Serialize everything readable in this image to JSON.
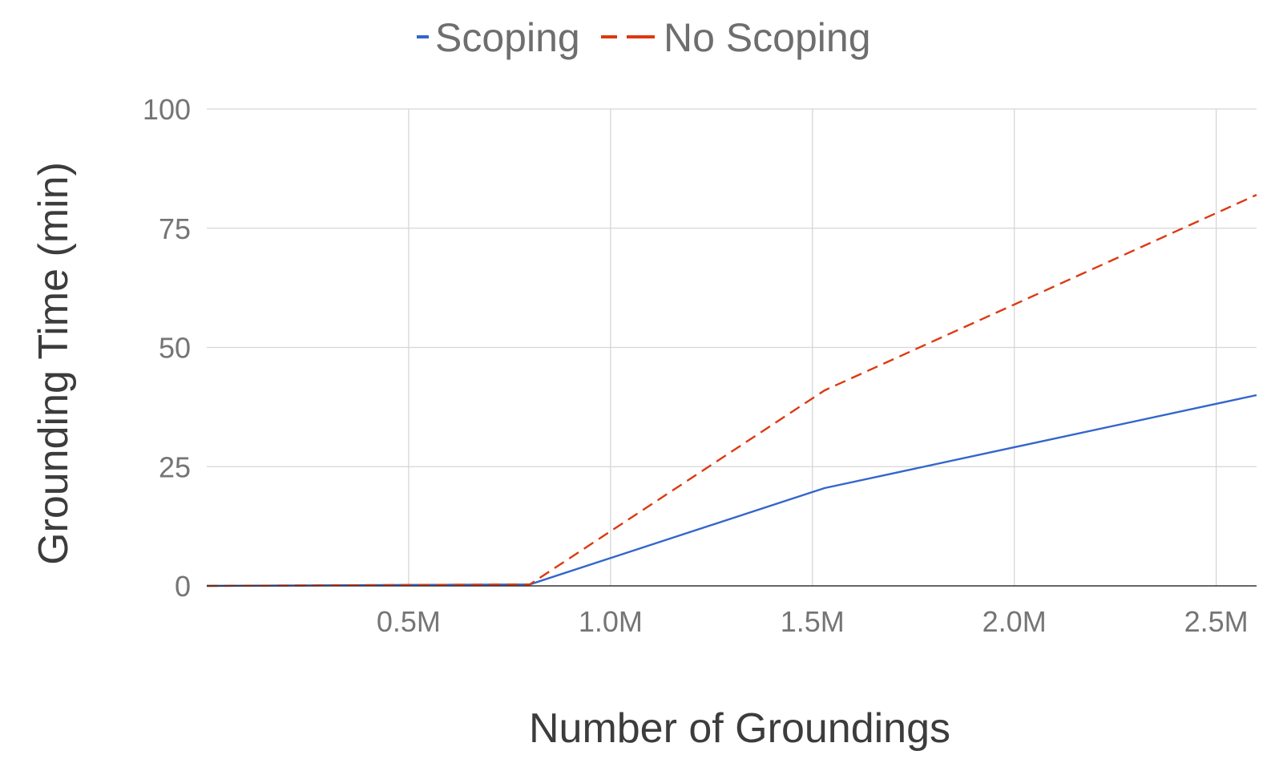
{
  "chart_data": {
    "type": "line",
    "title": "",
    "xlabel": "Number of Groundings",
    "ylabel": "Grounding Time (min)",
    "xlim": [
      0,
      2600000
    ],
    "ylim": [
      0,
      100
    ],
    "x_ticks": [
      500000,
      1000000,
      1500000,
      2000000,
      2500000
    ],
    "x_tick_labels": [
      "0.5M",
      "1.0M",
      "1.5M",
      "2.0M",
      "2.5M"
    ],
    "y_ticks": [
      0,
      25,
      50,
      75,
      100
    ],
    "y_tick_labels": [
      "0",
      "25",
      "50",
      "75",
      "100"
    ],
    "grid": true,
    "legend_position": "top",
    "series": [
      {
        "name": "Scoping",
        "color": "#3366cc",
        "dash": "solid",
        "x": [
          0,
          800000,
          1530000,
          2600000
        ],
        "y": [
          0,
          0.3,
          20.5,
          40
        ]
      },
      {
        "name": "No Scoping",
        "color": "#dc3912",
        "dash": "dashed",
        "x": [
          0,
          800000,
          1530000,
          2600000
        ],
        "y": [
          0,
          0.3,
          41,
          82
        ]
      }
    ]
  }
}
